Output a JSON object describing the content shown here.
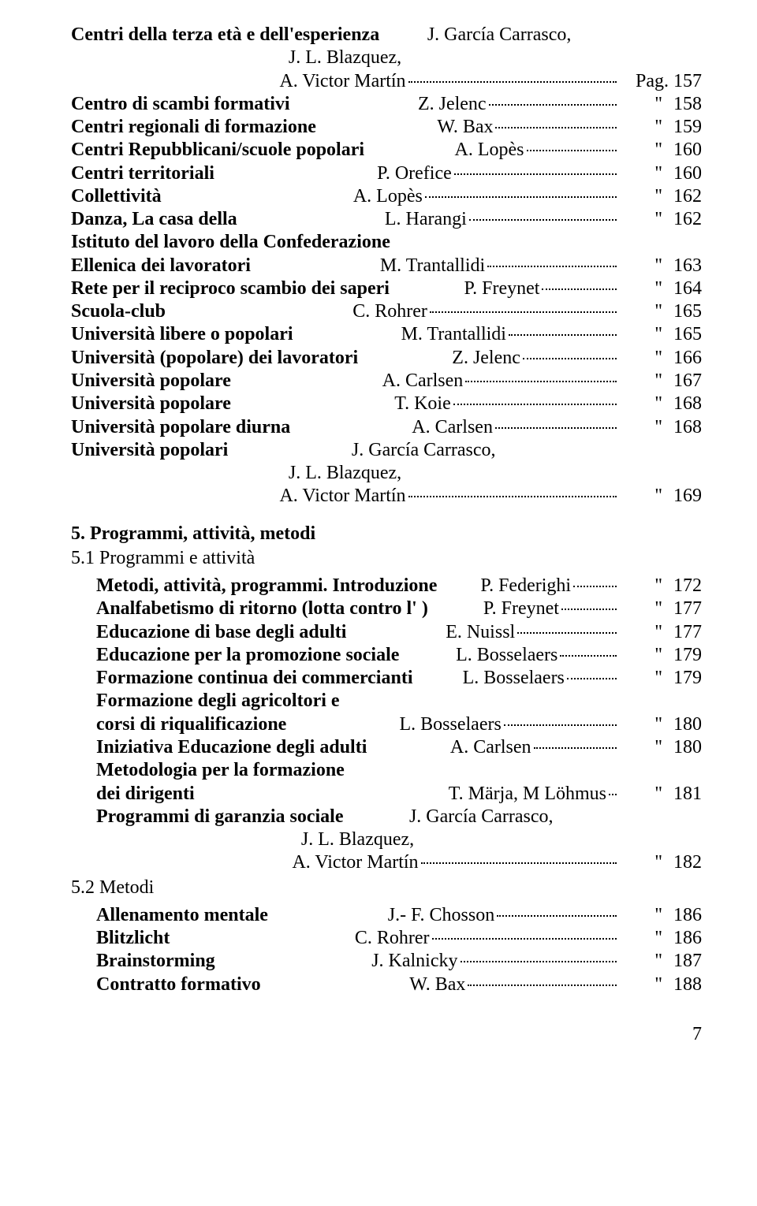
{
  "pagePrefix": "Pag.",
  "quoteMark": "\"",
  "entries1": [
    {
      "title": "Centri della terza età e dell'esperienza",
      "authors": [
        "J. García Carrasco,",
        "J. L. Blazquez,",
        "A. Victor Martín"
      ],
      "page": "157",
      "firstPagePrefix": true
    },
    {
      "title": "Centro di scambi formativi",
      "authors": [
        "Z. Jelenc"
      ],
      "page": "158"
    },
    {
      "title": "Centri regionali di formazione",
      "authors": [
        "W. Bax"
      ],
      "page": "159"
    },
    {
      "title": "Centri Repubblicani/scuole popolari",
      "authors": [
        "A. Lopès"
      ],
      "page": "160"
    },
    {
      "title": "Centri territoriali",
      "authors": [
        "P. Orefice"
      ],
      "page": "160"
    },
    {
      "title": "Collettività",
      "authors": [
        "A. Lopès"
      ],
      "page": "162"
    },
    {
      "title": "Danza, La casa della",
      "authors": [
        "L. Harangi"
      ],
      "page": "162"
    },
    {
      "title": "Istituto del lavoro della Confederazione",
      "cont": true
    },
    {
      "title": "Ellenica dei lavoratori",
      "authors": [
        "M. Trantallidi"
      ],
      "page": "163"
    },
    {
      "title": "Rete per il reciproco scambio dei saperi",
      "authors": [
        "P. Freynet"
      ],
      "page": "164"
    },
    {
      "title": "Scuola-club",
      "authors": [
        "C. Rohrer"
      ],
      "page": "165"
    },
    {
      "title": "Università libere o popolari",
      "authors": [
        "M. Trantallidi"
      ],
      "page": "165"
    },
    {
      "title": "Università (popolare) dei lavoratori",
      "authors": [
        "Z. Jelenc"
      ],
      "page": "166"
    },
    {
      "title": "Università popolare",
      "authors": [
        "A. Carlsen"
      ],
      "page": "167"
    },
    {
      "title": "Università popolare",
      "authors": [
        "T. Koie"
      ],
      "page": "168"
    },
    {
      "title": "Università popolare diurna",
      "authors": [
        "A. Carlsen"
      ],
      "page": "168"
    },
    {
      "title": "Università popolari",
      "authors": [
        "J. García Carrasco,",
        "J. L. Blazquez,",
        "A. Victor Martín"
      ],
      "page": "169"
    }
  ],
  "sectionHeading": "5. Programmi, attività, metodi",
  "sub1": "5.1 Programmi e attività",
  "entries2": [
    {
      "title": "Metodi, attività, programmi. Introduzione",
      "authors": [
        "P. Federighi"
      ],
      "page": "172"
    },
    {
      "title": "Analfabetismo di ritorno (lotta contro l' )",
      "authors": [
        "P. Freynet"
      ],
      "page": "177"
    },
    {
      "title": "Educazione di base degli adulti",
      "authors": [
        "E. Nuissl"
      ],
      "page": "177"
    },
    {
      "title": "Educazione per la promozione sociale",
      "authors": [
        "L. Bosselaers"
      ],
      "page": "179"
    },
    {
      "title": "Formazione continua dei commercianti",
      "authors": [
        "L. Bosselaers"
      ],
      "page": "179"
    },
    {
      "title": "Formazione degli agricoltori e",
      "cont": true
    },
    {
      "title": "corsi di riqualificazione",
      "authors": [
        "L. Bosselaers"
      ],
      "page": "180"
    },
    {
      "title": "Iniziativa Educazione degli adulti",
      "authors": [
        "A. Carlsen"
      ],
      "page": "180"
    },
    {
      "title": "Metodologia per la formazione",
      "cont": true
    },
    {
      "title": "dei dirigenti",
      "authors": [
        "T. Märja, M Löhmus"
      ],
      "page": "181",
      "shortLeader": true
    },
    {
      "title": "Programmi di garanzia sociale",
      "authors": [
        "J. García Carrasco,",
        "J. L. Blazquez,",
        "A. Victor Martín"
      ],
      "page": "182"
    }
  ],
  "sub2": "5.2 Metodi",
  "entries3": [
    {
      "title": "Allenamento mentale",
      "authors": [
        "J.- F. Chosson"
      ],
      "page": "186"
    },
    {
      "title": "Blitzlicht",
      "authors": [
        "C. Rohrer"
      ],
      "page": "186"
    },
    {
      "title": "Brainstorming",
      "authors": [
        "J. Kalnicky"
      ],
      "page": "187"
    },
    {
      "title": "Contratto formativo",
      "authors": [
        "W. Bax"
      ],
      "page": "188"
    }
  ],
  "footerPage": "7"
}
